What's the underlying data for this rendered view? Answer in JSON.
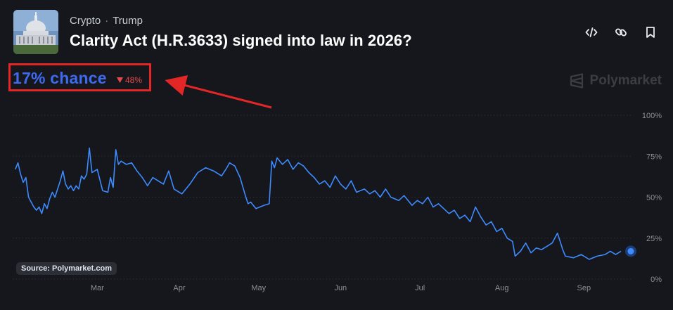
{
  "header": {
    "category": "Crypto",
    "separator": "·",
    "tag": "Trump",
    "title": "Clarity Act (H.R.3633) signed into law in 2026?"
  },
  "odds": {
    "chance_label": "17% chance",
    "change_label": "48%",
    "change_direction": "down",
    "change_color": "#e5484d"
  },
  "brand": {
    "name": "Polymarket"
  },
  "source_label": "Source: Polymarket.com",
  "icons": [
    "code-icon",
    "link-icon",
    "bookmark-icon",
    "capitol-thumbnail",
    "polymarket-logo-icon",
    "down-triangle-icon"
  ],
  "colors": {
    "line": "#3d8bff",
    "accent": "#3d6af0",
    "annotation": "#e32626",
    "background": "#15171c"
  },
  "chart_data": {
    "type": "line",
    "title": "",
    "xlabel": "",
    "ylabel": "",
    "ylim": [
      0,
      100
    ],
    "y_unit": "%",
    "y_ticks": [
      100,
      75,
      50,
      25,
      0
    ],
    "y_tick_labels": [
      "100%",
      "75%",
      "50%",
      "25%",
      "0%"
    ],
    "x_range": [
      "2026-01-28",
      "2026-09-19"
    ],
    "x_ticks": [
      {
        "date": "2026-03-01",
        "label": "Mar"
      },
      {
        "date": "2026-04-01",
        "label": "Apr"
      },
      {
        "date": "2026-05-01",
        "label": "May"
      },
      {
        "date": "2026-06-01",
        "label": "Jun"
      },
      {
        "date": "2026-07-01",
        "label": "Jul"
      },
      {
        "date": "2026-08-01",
        "label": "Aug"
      },
      {
        "date": "2026-09-01",
        "label": "Sep"
      }
    ],
    "grid": "horizontal-dashed",
    "series": [
      {
        "points": [
          [
            "2026-01-29",
            67
          ],
          [
            "2026-01-30",
            71
          ],
          [
            "2026-01-31",
            64
          ],
          [
            "2026-02-01",
            59
          ],
          [
            "2026-02-02",
            62
          ],
          [
            "2026-02-03",
            50
          ],
          [
            "2026-02-04",
            47
          ],
          [
            "2026-02-05",
            44
          ],
          [
            "2026-02-06",
            42
          ],
          [
            "2026-02-07",
            44
          ],
          [
            "2026-02-08",
            40
          ],
          [
            "2026-02-09",
            46
          ],
          [
            "2026-02-10",
            43
          ],
          [
            "2026-02-11",
            49
          ],
          [
            "2026-02-12",
            53
          ],
          [
            "2026-02-13",
            50
          ],
          [
            "2026-02-14",
            55
          ],
          [
            "2026-02-15",
            60
          ],
          [
            "2026-02-16",
            66
          ],
          [
            "2026-02-17",
            58
          ],
          [
            "2026-02-18",
            55
          ],
          [
            "2026-02-19",
            57
          ],
          [
            "2026-02-20",
            54
          ],
          [
            "2026-02-21",
            57
          ],
          [
            "2026-02-22",
            55
          ],
          [
            "2026-02-23",
            63
          ],
          [
            "2026-02-24",
            61
          ],
          [
            "2026-02-25",
            64
          ],
          [
            "2026-02-26",
            80
          ],
          [
            "2026-02-27",
            65
          ],
          [
            "2026-03-01",
            67
          ],
          [
            "2026-03-03",
            54
          ],
          [
            "2026-03-05",
            53
          ],
          [
            "2026-03-06",
            62
          ],
          [
            "2026-03-07",
            56
          ],
          [
            "2026-03-08",
            79
          ],
          [
            "2026-03-09",
            70
          ],
          [
            "2026-03-10",
            72
          ],
          [
            "2026-03-12",
            70
          ],
          [
            "2026-03-14",
            71
          ],
          [
            "2026-03-16",
            66
          ],
          [
            "2026-03-18",
            62
          ],
          [
            "2026-03-20",
            57
          ],
          [
            "2026-03-22",
            62
          ],
          [
            "2026-03-24",
            60
          ],
          [
            "2026-03-26",
            58
          ],
          [
            "2026-03-28",
            66
          ],
          [
            "2026-03-30",
            55
          ],
          [
            "2026-04-02",
            52
          ],
          [
            "2026-04-05",
            58
          ],
          [
            "2026-04-08",
            65
          ],
          [
            "2026-04-11",
            68
          ],
          [
            "2026-04-14",
            66
          ],
          [
            "2026-04-17",
            63
          ],
          [
            "2026-04-19",
            68
          ],
          [
            "2026-04-20",
            71
          ],
          [
            "2026-04-22",
            69
          ],
          [
            "2026-04-24",
            62
          ],
          [
            "2026-04-26",
            51
          ],
          [
            "2026-04-27",
            46
          ],
          [
            "2026-04-28",
            47
          ],
          [
            "2026-04-30",
            43
          ],
          [
            "2026-05-03",
            45
          ],
          [
            "2026-05-05",
            46
          ],
          [
            "2026-05-06",
            72
          ],
          [
            "2026-05-07",
            68
          ],
          [
            "2026-05-08",
            74
          ],
          [
            "2026-05-10",
            70
          ],
          [
            "2026-05-12",
            73
          ],
          [
            "2026-05-14",
            67
          ],
          [
            "2026-05-16",
            71
          ],
          [
            "2026-05-18",
            69
          ],
          [
            "2026-05-20",
            65
          ],
          [
            "2026-05-22",
            62
          ],
          [
            "2026-05-24",
            58
          ],
          [
            "2026-05-26",
            60
          ],
          [
            "2026-05-28",
            56
          ],
          [
            "2026-05-30",
            63
          ],
          [
            "2026-06-01",
            58
          ],
          [
            "2026-06-03",
            55
          ],
          [
            "2026-06-05",
            60
          ],
          [
            "2026-06-07",
            53
          ],
          [
            "2026-06-10",
            55
          ],
          [
            "2026-06-12",
            52
          ],
          [
            "2026-06-14",
            54
          ],
          [
            "2026-06-16",
            50
          ],
          [
            "2026-06-18",
            55
          ],
          [
            "2026-06-20",
            50
          ],
          [
            "2026-06-23",
            48
          ],
          [
            "2026-06-25",
            51
          ],
          [
            "2026-06-28",
            45
          ],
          [
            "2026-06-30",
            48
          ],
          [
            "2026-07-02",
            46
          ],
          [
            "2026-07-04",
            50
          ],
          [
            "2026-07-06",
            44
          ],
          [
            "2026-07-08",
            46
          ],
          [
            "2026-07-10",
            43
          ],
          [
            "2026-07-12",
            40
          ],
          [
            "2026-07-14",
            42
          ],
          [
            "2026-07-16",
            37
          ],
          [
            "2026-07-18",
            39
          ],
          [
            "2026-07-20",
            35
          ],
          [
            "2026-07-22",
            44
          ],
          [
            "2026-07-24",
            38
          ],
          [
            "2026-07-26",
            33
          ],
          [
            "2026-07-28",
            35
          ],
          [
            "2026-07-30",
            29
          ],
          [
            "2026-08-01",
            31
          ],
          [
            "2026-08-03",
            25
          ],
          [
            "2026-08-05",
            23
          ],
          [
            "2026-08-06",
            14
          ],
          [
            "2026-08-08",
            17
          ],
          [
            "2026-08-10",
            22
          ],
          [
            "2026-08-12",
            16
          ],
          [
            "2026-08-14",
            19
          ],
          [
            "2026-08-16",
            18
          ],
          [
            "2026-08-18",
            20
          ],
          [
            "2026-08-20",
            22
          ],
          [
            "2026-08-22",
            28
          ],
          [
            "2026-08-23",
            23
          ],
          [
            "2026-08-24",
            18
          ],
          [
            "2026-08-25",
            14
          ],
          [
            "2026-08-28",
            13
          ],
          [
            "2026-08-31",
            15
          ],
          [
            "2026-09-03",
            12
          ],
          [
            "2026-09-06",
            14
          ],
          [
            "2026-09-09",
            15
          ],
          [
            "2026-09-11",
            17
          ],
          [
            "2026-09-13",
            15
          ],
          [
            "2026-09-15",
            17
          ]
        ]
      }
    ]
  }
}
